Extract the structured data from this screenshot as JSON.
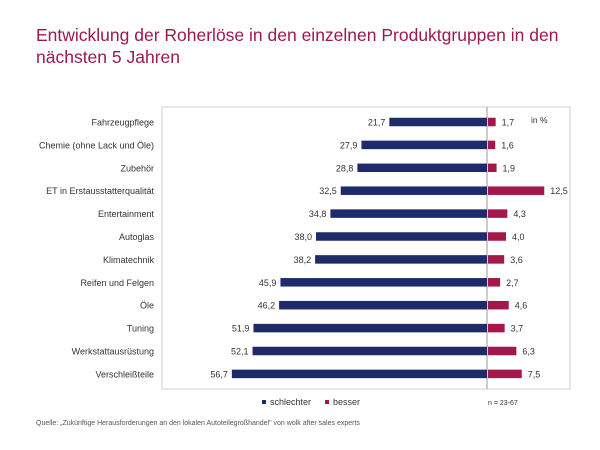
{
  "title": "Entwicklung der Roherlöse in den einzelnen Produktgruppen in den nächsten 5 Jahren",
  "colors": {
    "title": "#9b1a4e",
    "schlechter": "#1f2a6b",
    "besser": "#a3174b"
  },
  "chart_data": {
    "type": "bar",
    "orientation": "horizontal-diverging",
    "categories": [
      "Fahrzeugpflege",
      "Chemie (ohne Lack und Öle)",
      "Zubehör",
      "ET in Erstausstatterqualität",
      "Entertainment",
      "Autoglas",
      "Klimatechnik",
      "Reifen und Felgen",
      "Öle",
      "Tuning",
      "Werkstattausrüstung",
      "Verschleißteile"
    ],
    "series": [
      {
        "name": "schlechter",
        "values": [
          21.7,
          27.9,
          28.8,
          32.5,
          34.8,
          38.0,
          38.2,
          45.9,
          46.2,
          51.9,
          52.1,
          56.7
        ],
        "labels": [
          "21,7",
          "27,9",
          "28,8",
          "32,5",
          "34,8",
          "38,0",
          "38,2",
          "45,9",
          "46,2",
          "51,9",
          "52,1",
          "56,7"
        ]
      },
      {
        "name": "besser",
        "values": [
          1.7,
          1.6,
          1.9,
          12.5,
          4.3,
          4.0,
          3.6,
          2.7,
          4.6,
          3.7,
          6.3,
          7.5
        ],
        "labels": [
          "1,7",
          "1,6",
          "1,9",
          "12,5",
          "4,3",
          "4,0",
          "3,6",
          "2,7",
          "4,6",
          "3,7",
          "6,3",
          "7,5"
        ]
      }
    ],
    "unit_label": "in %",
    "legend": [
      "schlechter",
      "besser"
    ]
  },
  "sample_note": "n = 23-67",
  "source": "Quelle: „Zukünftige Herausforderungen an den lokalen Autoteilegroßhandel\" von wolk after sales experts"
}
